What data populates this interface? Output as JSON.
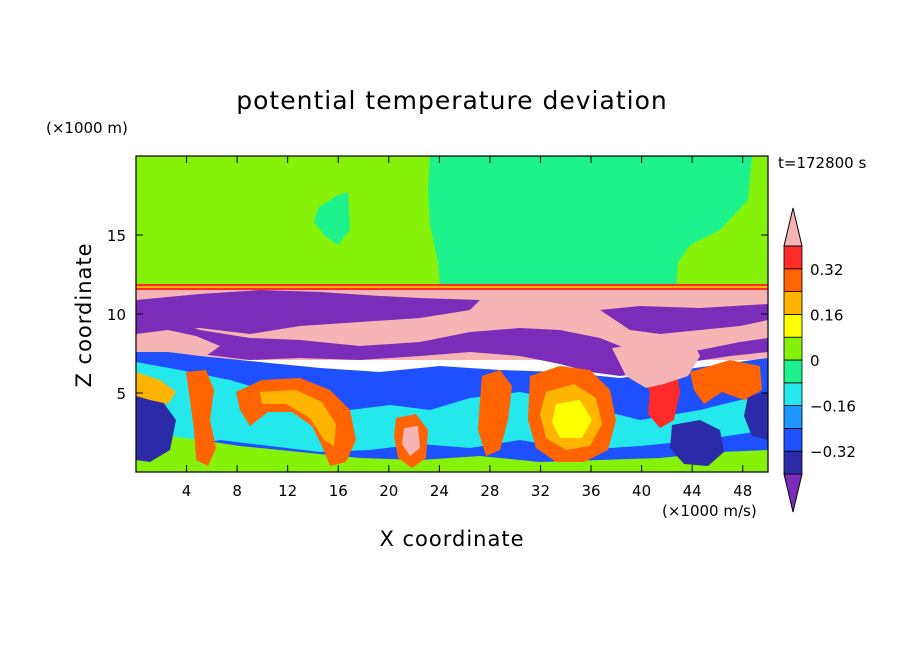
{
  "chart_data": {
    "type": "heatmap",
    "title": "potential temperature deviation",
    "xlabel": "X coordinate",
    "ylabel": "Z coordinate",
    "x_unit_label": "(×1000 m/s)",
    "y_unit_label": "(×1000 m)",
    "time_label": "t=172800 s",
    "xlim": [
      0,
      50
    ],
    "ylim": [
      0,
      20
    ],
    "x_ticks": [
      4,
      8,
      12,
      16,
      20,
      24,
      28,
      32,
      36,
      40,
      44,
      48
    ],
    "y_ticks": [
      5,
      10,
      15
    ],
    "colorbar": {
      "levels": [
        -0.4,
        -0.32,
        -0.24,
        -0.16,
        -0.08,
        0,
        0.08,
        0.16,
        0.24,
        0.32,
        0.4
      ],
      "tick_labels": [
        "0.32",
        "0.16",
        "0",
        "−0.16",
        "−0.32"
      ],
      "tick_values": [
        0.32,
        0.16,
        0,
        -0.16,
        -0.32
      ],
      "colors": [
        "#7b2cb8",
        "#2b2ba8",
        "#1e50ff",
        "#1e96ff",
        "#24e8ec",
        "#1ef28c",
        "#86f20a",
        "#ffff00",
        "#ffb400",
        "#ff6400",
        "#ff2b2b",
        "#f6b4b4"
      ],
      "extend": "both"
    }
  }
}
